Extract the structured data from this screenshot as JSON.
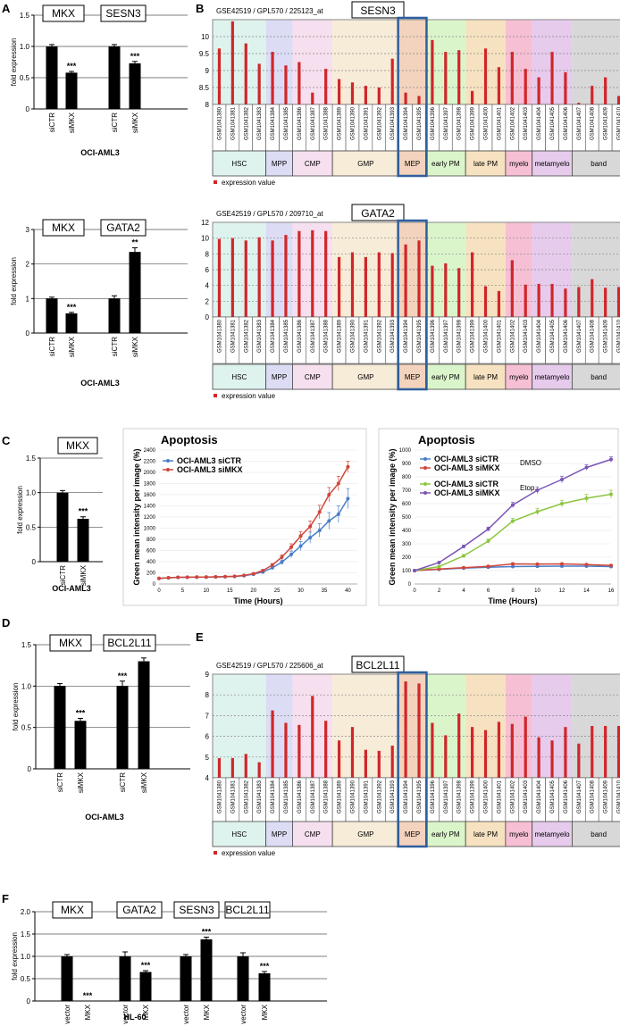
{
  "panels": {
    "A": "A",
    "B": "B",
    "C": "C",
    "D": "D",
    "E": "E",
    "F": "F"
  },
  "cell_lines": {
    "oci": "OCI-AML3",
    "hl60": "HL-60"
  },
  "stage_labels": [
    "HSC",
    "MPP",
    "CMP",
    "GMP",
    "MEP",
    "early PM",
    "late PM",
    "myelo",
    "metamyelo",
    "band"
  ],
  "stage_colors": [
    "#dff3ee",
    "#dcdcf5",
    "#f6dfee",
    "#f7ecd8",
    "#f3d3bd",
    "#dbf5cb",
    "#f6e2c0",
    "#f6bfd4",
    "#e6cbec",
    "#d8d8d8"
  ],
  "stage_spans": [
    [
      0,
      3
    ],
    [
      4,
      5
    ],
    [
      6,
      8
    ],
    [
      9,
      13
    ],
    [
      14,
      15
    ],
    [
      16,
      18
    ],
    [
      19,
      21
    ],
    [
      22,
      23
    ],
    [
      24,
      26
    ],
    [
      27,
      30
    ]
  ],
  "gsm_ids": [
    "GSM1041380",
    "GSM1041381",
    "GSM1041382",
    "GSM1041383",
    "GSM1041384",
    "GSM1041385",
    "GSM1041386",
    "GSM1041387",
    "GSM1041388",
    "GSM1041389",
    "GSM1041390",
    "GSM1041391",
    "GSM1041392",
    "GSM1041393",
    "GSM1041394",
    "GSM1041395",
    "GSM1041396",
    "GSM1041397",
    "GSM1041398",
    "GSM1041399",
    "GSM1041400",
    "GSM1041401",
    "GSM1041402",
    "GSM1041403",
    "GSM1041404",
    "GSM1041405",
    "GSM1041406",
    "GSM1041407",
    "GSM1041408",
    "GSM1041409",
    "GSM1041410"
  ],
  "legend": {
    "expression": "expression value"
  },
  "chart_data": [
    {
      "id": "A1",
      "type": "bar",
      "ylabel": "fold expression",
      "ylim": [
        0,
        1.5
      ],
      "yticks": [
        "0",
        "0.5",
        "1.0",
        "1.5"
      ],
      "genes": [
        "MKX",
        "SESN3"
      ],
      "categories": [
        "siCTR",
        "siMKX",
        "siCTR",
        "siMKX"
      ],
      "values": [
        1.0,
        0.58,
        1.0,
        0.73
      ],
      "errors": [
        0.03,
        0.02,
        0.03,
        0.03
      ],
      "sig": [
        "",
        "***",
        "",
        "***"
      ],
      "xlabel": "OCI-AML3"
    },
    {
      "id": "A2",
      "type": "bar",
      "ylabel": "fold expression",
      "ylim": [
        0,
        3
      ],
      "yticks": [
        "0",
        "1",
        "2",
        "3"
      ],
      "genes": [
        "MKX",
        "GATA2"
      ],
      "categories": [
        "siCTR",
        "siMKX",
        "siCTR",
        "siMKX"
      ],
      "values": [
        1.0,
        0.57,
        1.0,
        2.35
      ],
      "errors": [
        0.04,
        0.03,
        0.08,
        0.12
      ],
      "sig": [
        "",
        "***",
        "",
        "**"
      ],
      "xlabel": "OCI-AML3"
    },
    {
      "id": "B1",
      "type": "bar",
      "title": "GSE42519 / GPL570 / 225123_at",
      "gene": "SESN3",
      "ylim": [
        8,
        10.5
      ],
      "yticks": [
        "8",
        "8.5",
        "9",
        "9.5",
        "10"
      ],
      "values": [
        9.65,
        10.45,
        9.8,
        9.2,
        9.55,
        9.15,
        9.25,
        8.35,
        9.05,
        8.75,
        8.65,
        8.55,
        8.5,
        9.35,
        8.35,
        8.25,
        9.9,
        9.55,
        9.6,
        8.4,
        9.65,
        9.1,
        9.55,
        9.05,
        8.8,
        9.55,
        8.95,
        8.05,
        8.55,
        8.8,
        8.25
      ]
    },
    {
      "id": "B2",
      "type": "bar",
      "title": "GSE42519 / GPL570 / 209710_at",
      "gene": "GATA2",
      "ylim": [
        0,
        12
      ],
      "yticks": [
        "0",
        "2",
        "4",
        "6",
        "8",
        "10",
        "12"
      ],
      "values": [
        9.9,
        10.0,
        9.7,
        10.1,
        9.7,
        10.4,
        10.9,
        11.0,
        10.9,
        7.6,
        8.2,
        7.6,
        8.2,
        8.1,
        9.2,
        9.7,
        6.5,
        6.8,
        6.2,
        8.2,
        3.9,
        3.3,
        7.2,
        4.1,
        4.2,
        4.2,
        3.6,
        3.8,
        4.8,
        3.7,
        3.8
      ]
    },
    {
      "id": "C1",
      "type": "bar",
      "ylabel": "fold expression",
      "ylim": [
        0,
        1.5
      ],
      "yticks": [
        "0",
        "0.5",
        "1.0",
        "1.5"
      ],
      "genes": [
        "MKX"
      ],
      "categories": [
        "siCTR",
        "siMKX"
      ],
      "values": [
        1.0,
        0.62
      ],
      "errors": [
        0.03,
        0.03
      ],
      "sig": [
        "",
        "***"
      ],
      "xlabel": "OCI-AML3"
    },
    {
      "id": "C2",
      "type": "line",
      "title": "Apoptosis",
      "xlabel": "Time (Hours)",
      "ylabel": "Green mean intensity per image (%)",
      "xlim": [
        0,
        42
      ],
      "ylim": [
        0,
        2400
      ],
      "xticks": [
        0,
        5,
        10,
        15,
        20,
        25,
        30,
        35,
        40
      ],
      "yticks": [
        "0",
        "200",
        "400",
        "600",
        "800",
        "1000",
        "1200",
        "1400",
        "1600",
        "1800",
        "2000",
        "2200",
        "2400"
      ],
      "x": [
        0,
        2,
        4,
        6,
        8,
        10,
        12,
        14,
        16,
        18,
        20,
        22,
        24,
        26,
        28,
        30,
        32,
        34,
        36,
        38,
        40
      ],
      "series": [
        {
          "name": "OCI-AML3 siCTR",
          "color": "#4a7fc9",
          "values": [
            100,
            110,
            118,
            120,
            122,
            124,
            126,
            130,
            135,
            148,
            175,
            215,
            290,
            390,
            530,
            680,
            830,
            960,
            1130,
            1250,
            1530
          ],
          "errors": [
            5,
            5,
            5,
            5,
            5,
            5,
            5,
            5,
            5,
            8,
            10,
            15,
            25,
            40,
            60,
            80,
            100,
            120,
            150,
            150,
            180
          ]
        },
        {
          "name": "OCI-AML3 siMKX",
          "color": "#d0453a",
          "values": [
            100,
            112,
            120,
            122,
            124,
            125,
            128,
            132,
            138,
            155,
            185,
            240,
            340,
            480,
            660,
            860,
            1030,
            1290,
            1600,
            1800,
            2100
          ],
          "errors": [
            5,
            5,
            5,
            5,
            5,
            5,
            5,
            5,
            5,
            8,
            10,
            15,
            25,
            40,
            60,
            80,
            100,
            120,
            130,
            130,
            100
          ]
        }
      ]
    },
    {
      "id": "C3",
      "type": "line",
      "title": "Apoptosis",
      "xlabel": "Time (Hours)",
      "ylabel": "Green mean intensity per image (%)",
      "xlim": [
        0,
        16
      ],
      "ylim": [
        0,
        1000
      ],
      "xticks": [
        0,
        2,
        4,
        6,
        8,
        10,
        12,
        14,
        16
      ],
      "yticks": [
        "0",
        "100",
        "200",
        "300",
        "400",
        "500",
        "600",
        "700",
        "800",
        "900",
        "1000"
      ],
      "legend_groups": [
        "DMSO",
        "Etop."
      ],
      "x": [
        0,
        2,
        4,
        6,
        8,
        10,
        12,
        14,
        16
      ],
      "series": [
        {
          "name": "OCI-AML3 siCTR",
          "group": "DMSO",
          "color": "#4a7fc9",
          "values": [
            100,
            110,
            118,
            125,
            130,
            132,
            133,
            133,
            130
          ],
          "errors": [
            3,
            4,
            4,
            4,
            4,
            4,
            4,
            4,
            4
          ]
        },
        {
          "name": "OCI-AML3 siMKX",
          "group": "DMSO",
          "color": "#d0453a",
          "values": [
            100,
            112,
            122,
            132,
            150,
            148,
            150,
            145,
            138
          ],
          "errors": [
            3,
            4,
            4,
            4,
            5,
            5,
            5,
            5,
            5
          ]
        },
        {
          "name": "OCI-AML3 siCTR",
          "group": "Etop.",
          "color": "#8cc63f",
          "values": [
            100,
            130,
            210,
            320,
            470,
            540,
            600,
            640,
            670
          ],
          "errors": [
            4,
            8,
            10,
            15,
            20,
            25,
            25,
            30,
            30
          ]
        },
        {
          "name": "OCI-AML3 siMKX",
          "group": "Etop.",
          "color": "#7b55b5",
          "values": [
            100,
            160,
            280,
            410,
            590,
            700,
            780,
            870,
            930
          ],
          "errors": [
            4,
            8,
            10,
            15,
            20,
            25,
            25,
            20,
            20
          ]
        }
      ]
    },
    {
      "id": "D1",
      "type": "bar",
      "ylabel": "fold expression",
      "ylim": [
        0,
        1.5
      ],
      "yticks": [
        "0",
        "0.5",
        "1.0",
        "1.5"
      ],
      "genes": [
        "MKX",
        "BCL2L11"
      ],
      "categories": [
        "siCTR",
        "siMKX",
        "siCTR",
        "siMKX"
      ],
      "values": [
        1.0,
        0.58,
        1.0,
        1.3
      ],
      "errors": [
        0.03,
        0.03,
        0.06,
        0.04
      ],
      "sig": [
        "",
        "***",
        "***",
        ""
      ],
      "xlabel": "OCI-AML3"
    },
    {
      "id": "E1",
      "type": "bar",
      "title": "GSE42519 / GPL570 / 225606_at",
      "gene": "BCL2L11",
      "ylim": [
        4,
        9
      ],
      "yticks": [
        "4",
        "5",
        "6",
        "7",
        "8",
        "9"
      ],
      "values": [
        4.95,
        4.95,
        5.15,
        4.75,
        7.25,
        6.65,
        6.55,
        7.95,
        6.75,
        5.8,
        6.45,
        5.35,
        5.3,
        5.55,
        8.65,
        8.55,
        6.65,
        6.05,
        7.1,
        6.45,
        6.3,
        6.7,
        6.6,
        6.95,
        5.95,
        5.8,
        6.45,
        5.65,
        6.5,
        6.5,
        6.5
      ]
    },
    {
      "id": "F1",
      "type": "bar",
      "ylabel": "fold expression",
      "ylim": [
        0,
        2.0
      ],
      "yticks": [
        "0",
        "0.5",
        "1.0",
        "1.5",
        "2.0"
      ],
      "genes": [
        "MKX",
        "GATA2",
        "SESN3",
        "BCL2L11"
      ],
      "categories": [
        "vector",
        "MKX",
        "vector",
        "MKX",
        "vector",
        "MKX",
        "vector",
        "MKX"
      ],
      "values": [
        1.0,
        0.0,
        1.0,
        0.65,
        1.0,
        1.38,
        1.0,
        0.62
      ],
      "errors": [
        0.04,
        0.0,
        0.1,
        0.03,
        0.04,
        0.05,
        0.08,
        0.04
      ],
      "sig": [
        "",
        "***",
        "",
        "***",
        "",
        "***",
        "",
        "***"
      ],
      "xlabel": "HL-60"
    }
  ]
}
